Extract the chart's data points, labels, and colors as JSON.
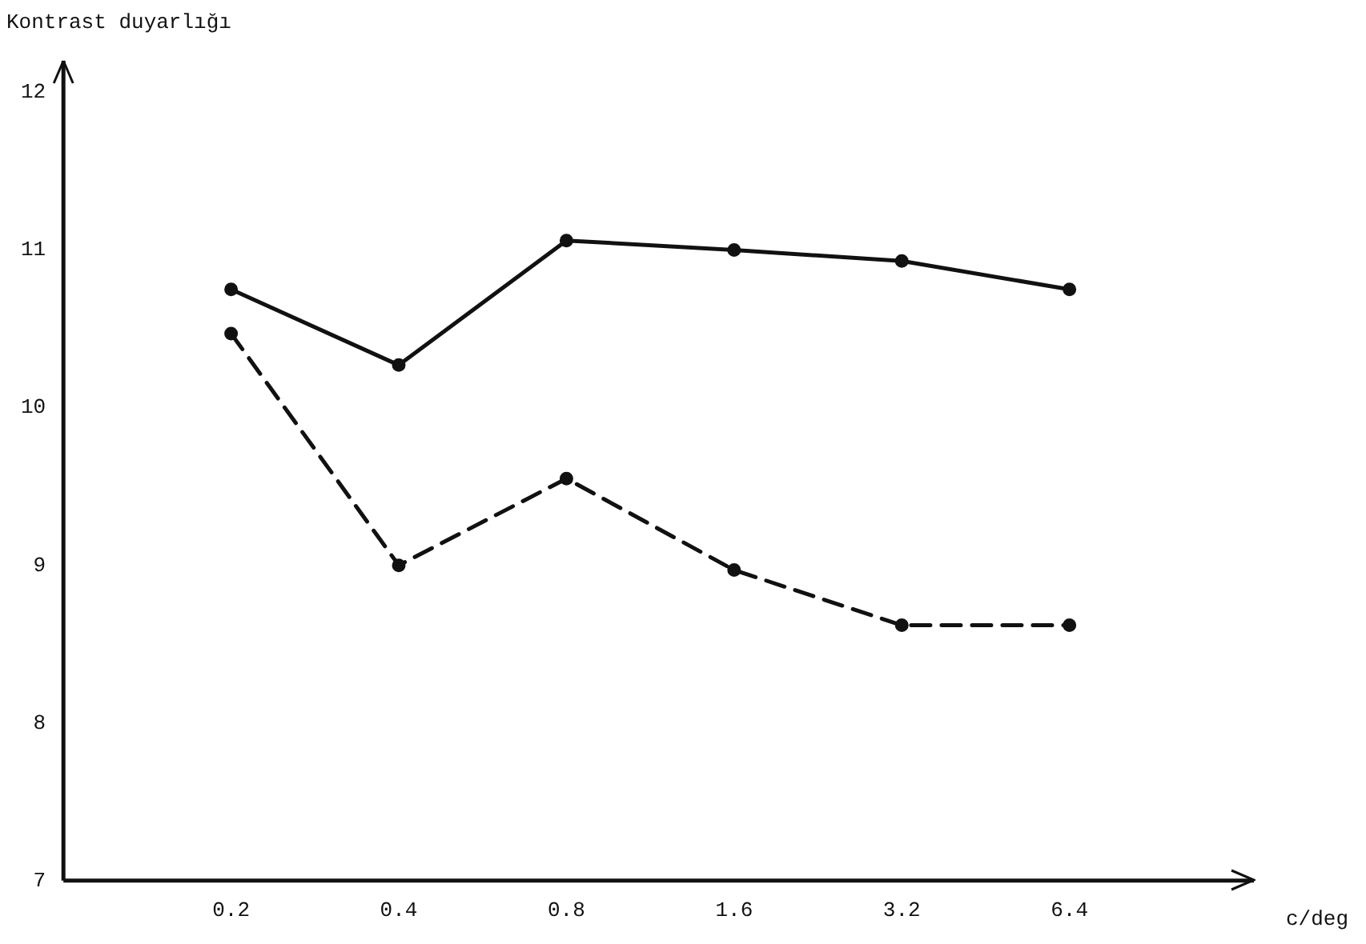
{
  "chart_data": {
    "type": "line",
    "ylabel": "Kontrast duyarlığı",
    "xlabel": "c/deg",
    "categories": [
      "0.2",
      "0.4",
      "0.8",
      "1.6",
      "3.2",
      "6.4"
    ],
    "series": [
      {
        "color": "#111111",
        "line_style": "solid",
        "values": [
          10.75,
          10.27,
          11.06,
          11.0,
          10.93,
          10.75
        ]
      },
      {
        "color": "#111111",
        "line_style": "dashed",
        "values": [
          10.47,
          9.0,
          9.55,
          8.97,
          8.62,
          8.62
        ]
      }
    ],
    "ylim": [
      7,
      12.2
    ],
    "yticks": [
      7,
      8,
      9,
      10,
      11,
      12
    ],
    "grid": false,
    "legend": false,
    "marker": "circle"
  }
}
